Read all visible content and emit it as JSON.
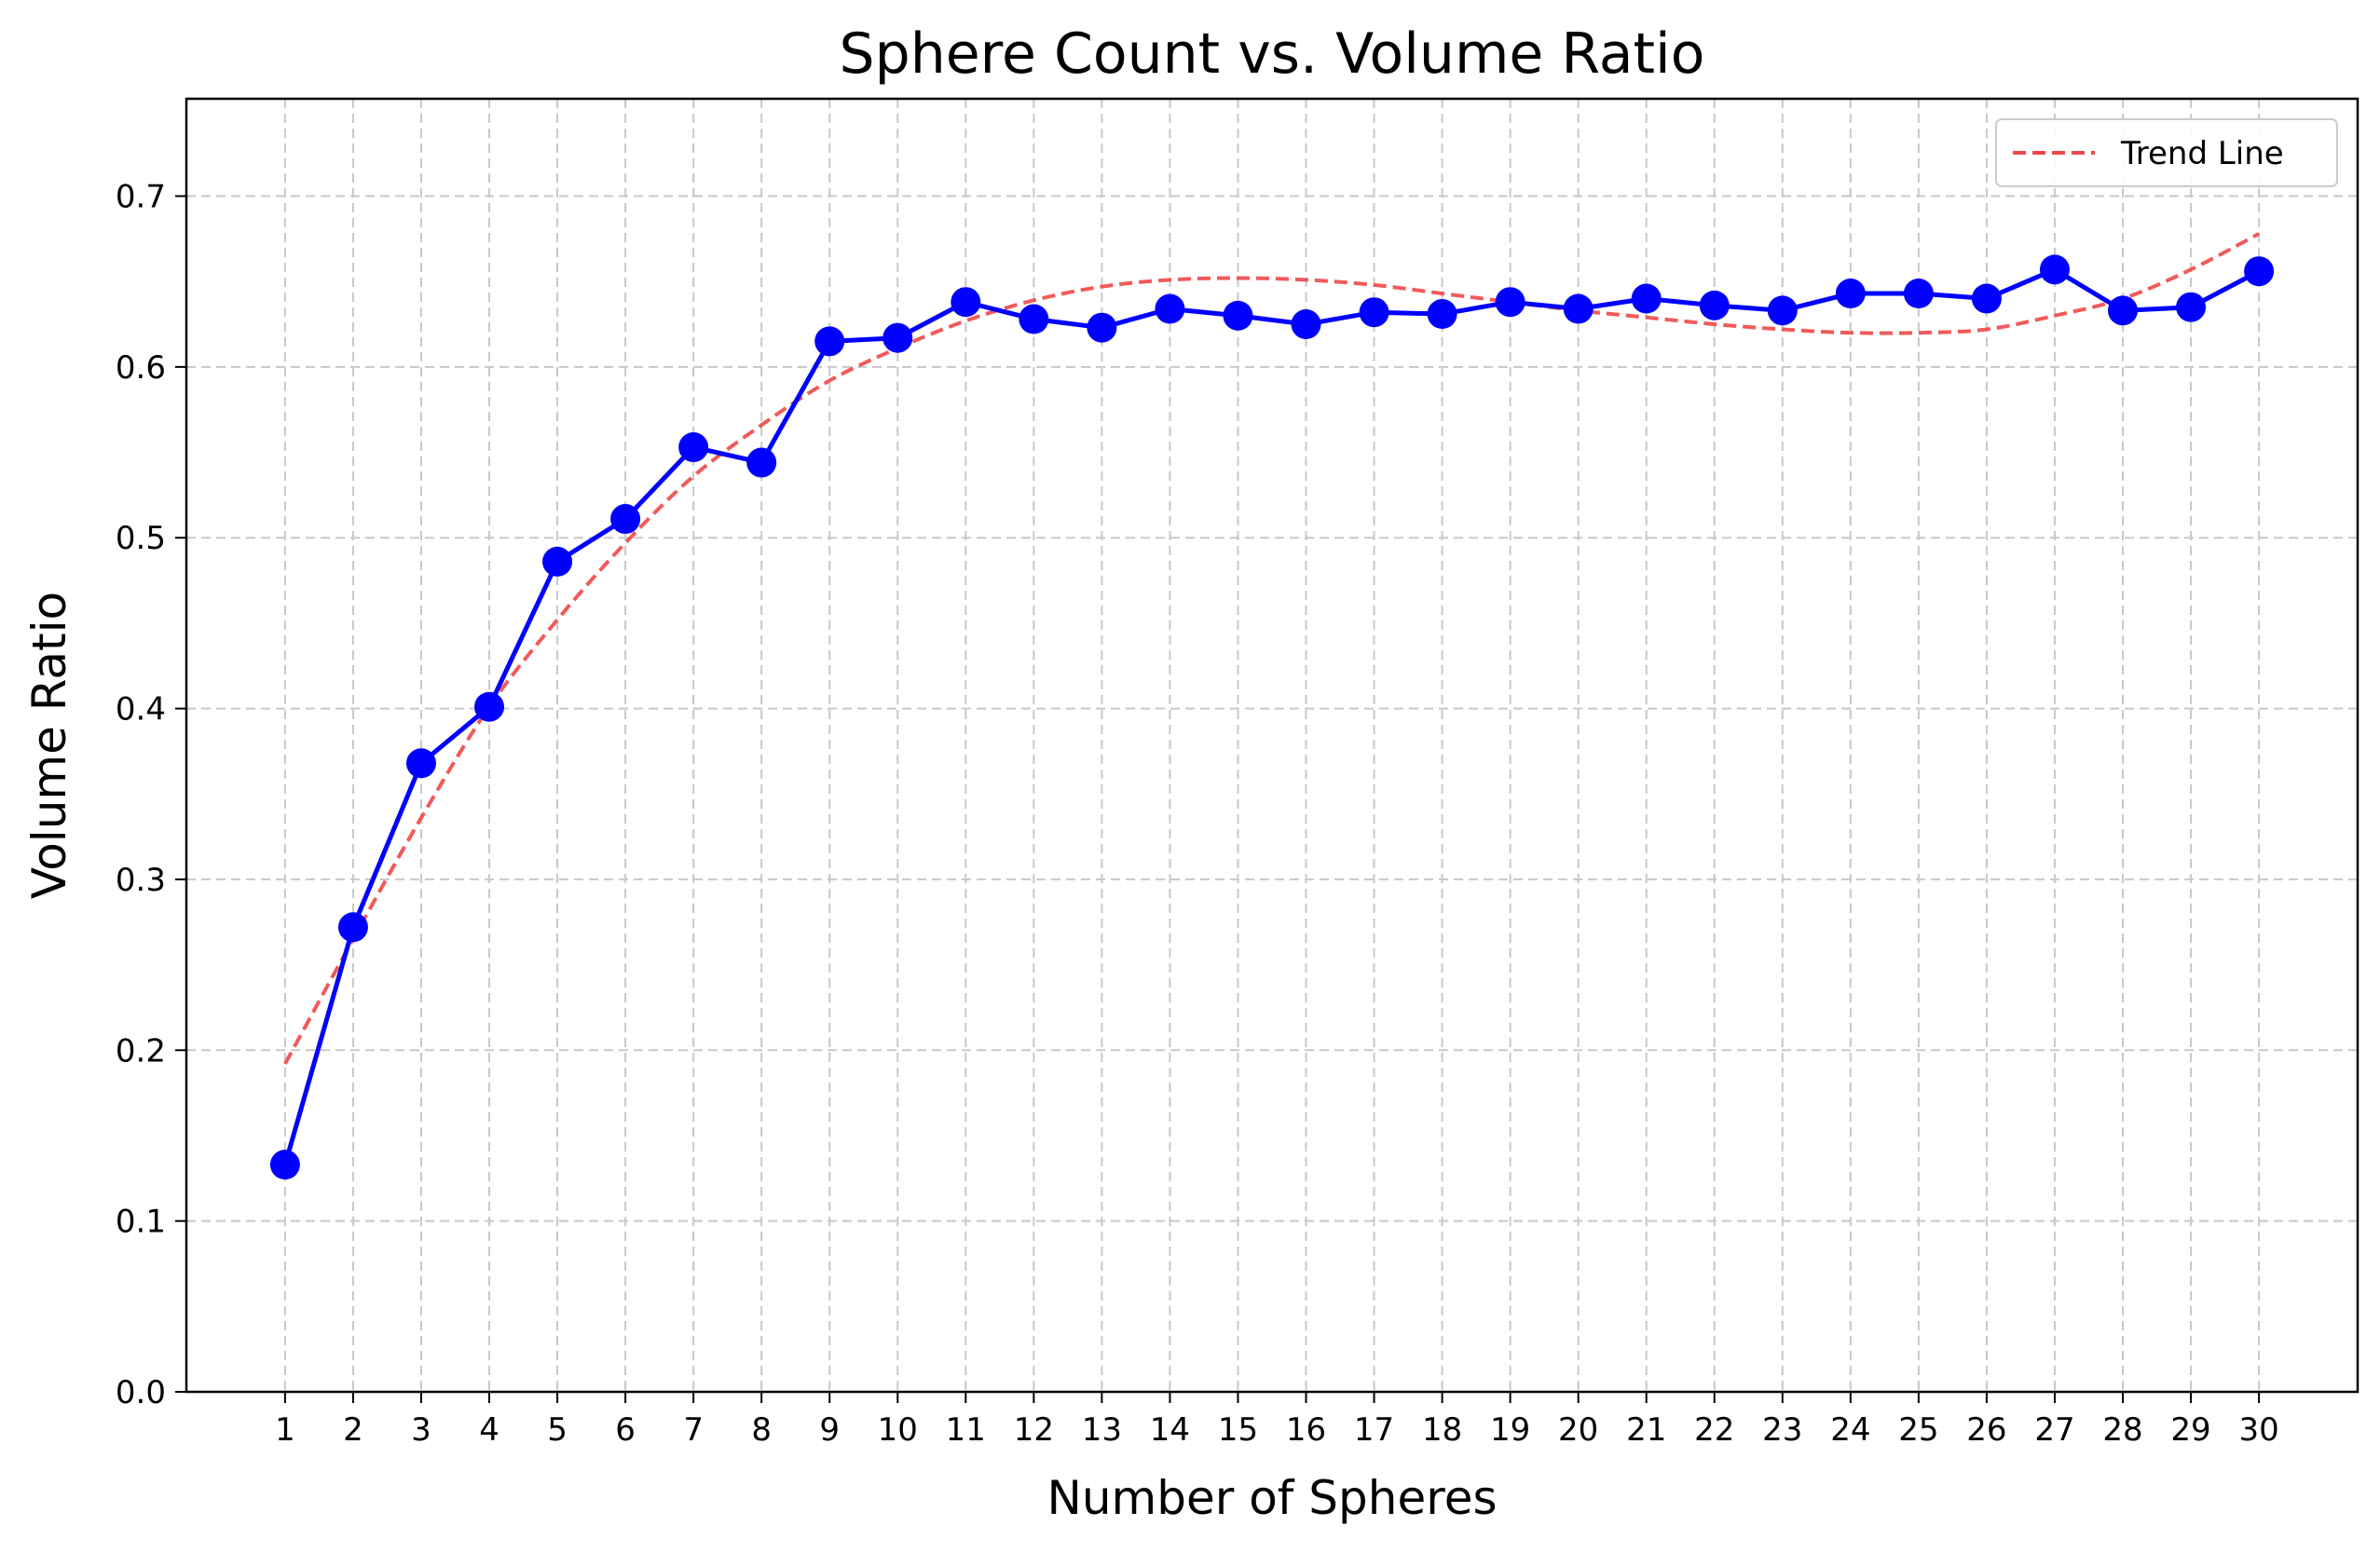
{
  "chart_data": {
    "type": "line",
    "title": "Sphere Count vs. Volume Ratio",
    "xlabel": "Number of Spheres",
    "ylabel": "Volume Ratio",
    "xlim": [
      -0.45,
      31.45
    ],
    "ylim": [
      0.0,
      0.757
    ],
    "grid": true,
    "legend_position": "top-right",
    "x_ticks": [
      "1",
      "2",
      "3",
      "4",
      "5",
      "6",
      "7",
      "8",
      "9",
      "10",
      "11",
      "12",
      "13",
      "14",
      "15",
      "16",
      "17",
      "18",
      "19",
      "20",
      "21",
      "22",
      "23",
      "24",
      "25",
      "26",
      "27",
      "28",
      "29",
      "30"
    ],
    "y_ticks": [
      "0.0",
      "0.1",
      "0.2",
      "0.3",
      "0.4",
      "0.5",
      "0.6",
      "0.7"
    ],
    "x": [
      1,
      2,
      3,
      4,
      5,
      6,
      7,
      8,
      9,
      10,
      11,
      12,
      13,
      14,
      15,
      16,
      17,
      18,
      19,
      20,
      21,
      22,
      23,
      24,
      25,
      26,
      27,
      28,
      29,
      30
    ],
    "series": [
      {
        "name": "",
        "style": "solid-line-with-circle-markers",
        "color": "#0000ff",
        "values": [
          0.133,
          0.272,
          0.368,
          0.401,
          0.486,
          0.511,
          0.553,
          0.544,
          0.615,
          0.617,
          0.638,
          0.628,
          0.623,
          0.634,
          0.63,
          0.625,
          0.632,
          0.631,
          0.638,
          0.634,
          0.64,
          0.636,
          0.633,
          0.643,
          0.643,
          0.64,
          0.657,
          0.633,
          0.635,
          0.656
        ]
      },
      {
        "name": "Trend Line",
        "style": "dashed",
        "color": "#f04848",
        "values": [
          0.192,
          0.265,
          0.336,
          0.401,
          0.452,
          0.497,
          0.536,
          0.566,
          0.592,
          0.611,
          0.627,
          0.639,
          0.647,
          0.651,
          0.652,
          0.651,
          0.648,
          0.643,
          0.638,
          0.633,
          0.629,
          0.625,
          0.622,
          0.62,
          0.62,
          0.622,
          0.63,
          0.64,
          0.657,
          0.678
        ]
      }
    ]
  }
}
